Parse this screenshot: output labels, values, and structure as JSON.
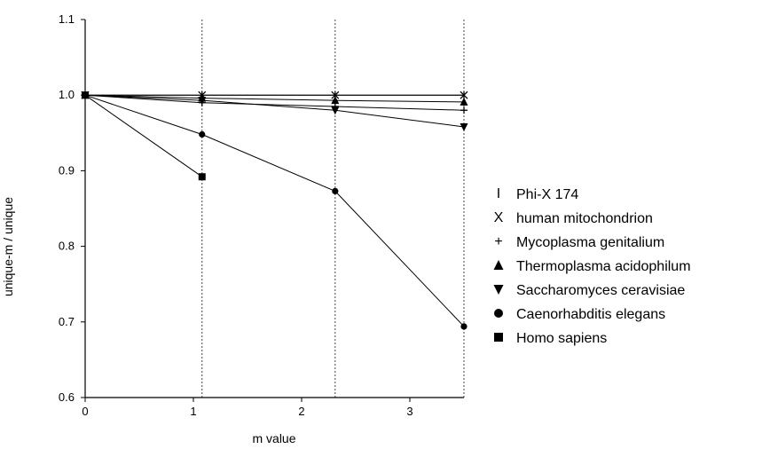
{
  "chart_data": {
    "type": "line",
    "xlabel": "m value",
    "ylabel": "unique-m / unique",
    "xlim": [
      0,
      3.5
    ],
    "ylim": [
      0.6,
      1.1
    ],
    "xticks": [
      {
        "value": 0,
        "label": "0"
      },
      {
        "value": 1,
        "label": "1"
      },
      {
        "value": 2,
        "label": "2"
      },
      {
        "value": 3,
        "label": "3"
      }
    ],
    "yticks": [
      {
        "value": 0.6,
        "label": "0.6"
      },
      {
        "value": 0.7,
        "label": "0.7"
      },
      {
        "value": 0.8,
        "label": "0.8"
      },
      {
        "value": 0.9,
        "label": "0.9"
      },
      {
        "value": 1.0,
        "label": "1.0"
      },
      {
        "value": 1.1,
        "label": "1.1"
      }
    ],
    "gridlines_x": [
      1.08,
      2.31,
      3.5
    ],
    "legend_position": "right",
    "series": [
      {
        "name": "Phi-X 174",
        "marker": "bar",
        "marker_glyph": "I",
        "x": [
          0,
          1.08,
          2.31,
          3.5
        ],
        "y": [
          1.0,
          1.0,
          1.0,
          1.0
        ]
      },
      {
        "name": "human mitochondrion",
        "marker": "x",
        "marker_glyph": "X",
        "x": [
          0,
          1.08,
          2.31,
          3.5
        ],
        "y": [
          1.0,
          1.0,
          1.0,
          1.0
        ]
      },
      {
        "name": "Mycoplasma genitalium",
        "marker": "plus",
        "marker_glyph": "+",
        "x": [
          0,
          1.08,
          2.31,
          3.5
        ],
        "y": [
          1.0,
          0.99,
          0.985,
          0.98
        ]
      },
      {
        "name": "Thermoplasma acidophilum",
        "marker": "triangle-up",
        "marker_glyph": "",
        "x": [
          0,
          1.08,
          2.31,
          3.5
        ],
        "y": [
          1.0,
          0.996,
          0.993,
          0.991
        ]
      },
      {
        "name": "Saccharomyces ceravisiae",
        "marker": "triangle-down",
        "marker_glyph": "",
        "x": [
          0,
          1.08,
          2.31,
          3.5
        ],
        "y": [
          1.0,
          0.993,
          0.98,
          0.958
        ]
      },
      {
        "name": "Caenorhabditis elegans",
        "marker": "circle",
        "marker_glyph": "",
        "x": [
          0,
          1.08,
          2.31,
          3.5
        ],
        "y": [
          1.0,
          0.948,
          0.873,
          0.694
        ]
      },
      {
        "name": "Homo sapiens",
        "marker": "square",
        "marker_glyph": "",
        "x": [
          0,
          1.08
        ],
        "y": [
          1.0,
          0.892
        ]
      }
    ]
  }
}
